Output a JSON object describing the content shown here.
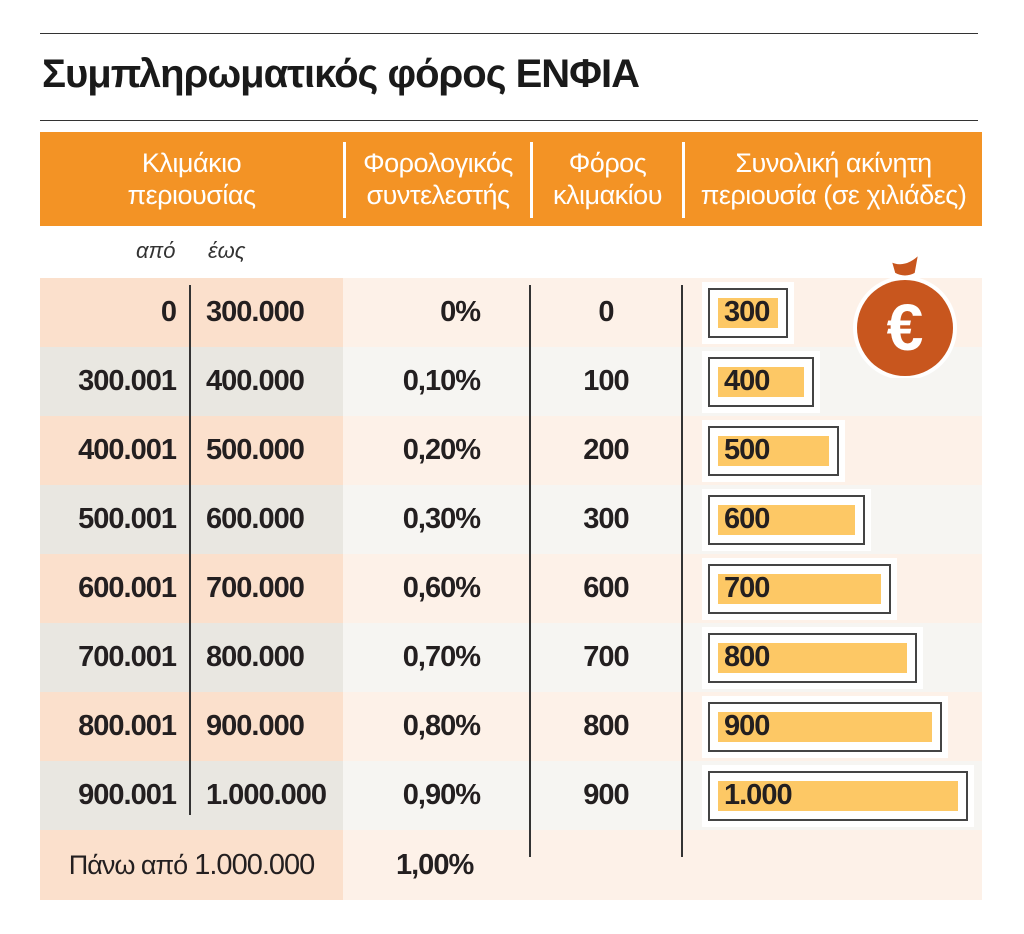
{
  "title": "Συμπληρωματικός φόρος ΕΝΦΙΑ",
  "headers": {
    "bracket": "Κλιμάκιο περιουσίας",
    "rate": "Φορολογικός συντελεστής",
    "tax": "Φόρος κλιμακίου",
    "total": "Συνολική ακίνητη περιουσία (σε χιλιάδες)"
  },
  "subheaders": {
    "from": "από",
    "to": "έως"
  },
  "last_row": {
    "label_prefix": "Πάνω από",
    "label_value": "1.000.000",
    "rate": "1,00%"
  },
  "colors": {
    "header": "#f39325",
    "bar": "#fdc865",
    "bag": "#c8561e"
  },
  "icon": "euro-money-bag-icon",
  "chart_data": {
    "type": "table",
    "rows": [
      {
        "from": "0",
        "to": "300.000",
        "rate": "0%",
        "tax": "0",
        "total": "300"
      },
      {
        "from": "300.001",
        "to": "400.000",
        "rate": "0,10%",
        "tax": "100",
        "total": "400"
      },
      {
        "from": "400.001",
        "to": "500.000",
        "rate": "0,20%",
        "tax": "200",
        "total": "500"
      },
      {
        "from": "500.001",
        "to": "600.000",
        "rate": "0,30%",
        "tax": "300",
        "total": "600"
      },
      {
        "from": "600.001",
        "to": "700.000",
        "rate": "0,60%",
        "tax": "600",
        "total": "700"
      },
      {
        "from": "700.001",
        "to": "800.000",
        "rate": "0,70%",
        "tax": "700",
        "total": "800"
      },
      {
        "from": "800.001",
        "to": "900.000",
        "rate": "0,80%",
        "tax": "800",
        "total": "900"
      },
      {
        "from": "900.001",
        "to": "1.000.000",
        "rate": "0,90%",
        "tax": "900",
        "total": "1.000"
      }
    ],
    "bar_values": [
      300,
      400,
      500,
      600,
      700,
      800,
      900,
      1000
    ]
  }
}
